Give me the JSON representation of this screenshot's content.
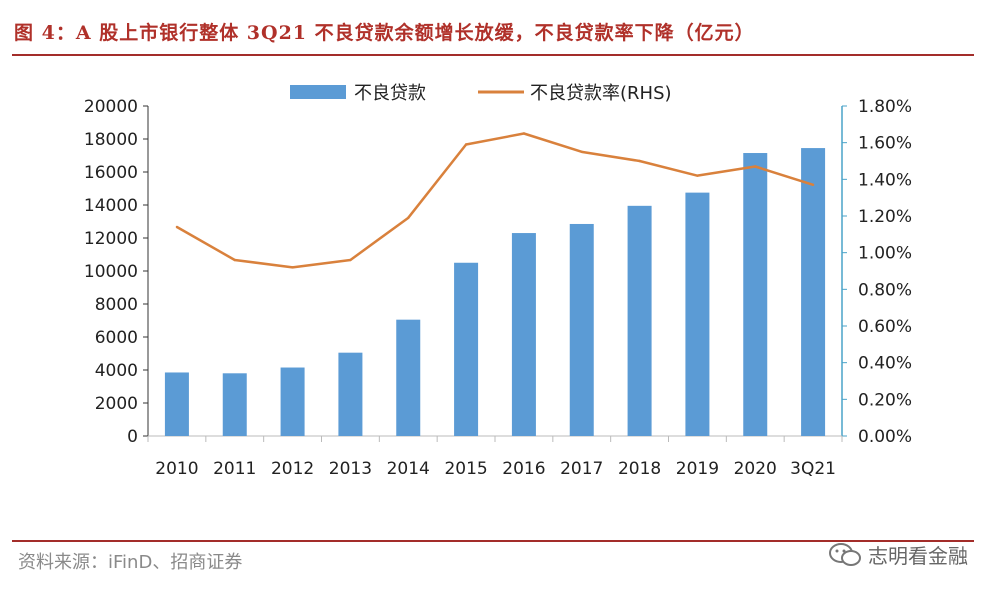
{
  "header": {
    "title": "图 4：A 股上市银行整体 3Q21 不良贷款余额增长放缓，不良贷款率下降（亿元）"
  },
  "footer": {
    "source": "资料来源：iFinD、招商证券",
    "watermark": "志明看金融"
  },
  "colors": {
    "bar": "#5b9bd5",
    "line": "#d9813c",
    "axis_left": "#333333",
    "axis_right": "#4aa3c8",
    "brand_red": "#a32d2a"
  },
  "chart_data": {
    "type": "bar",
    "title": "A 股上市银行整体 3Q21 不良贷款余额增长放缓，不良贷款率下降（亿元）",
    "categories": [
      "2010",
      "2011",
      "2012",
      "2013",
      "2014",
      "2015",
      "2016",
      "2017",
      "2018",
      "2019",
      "2020",
      "3Q21"
    ],
    "series": [
      {
        "name": "不良贷款",
        "type": "bar",
        "axis": "left",
        "values": [
          3850,
          3800,
          4150,
          5050,
          7050,
          10500,
          12300,
          12850,
          13950,
          14750,
          17150,
          17450
        ]
      },
      {
        "name": "不良贷款率(RHS)",
        "type": "line",
        "axis": "right",
        "values": [
          1.14,
          0.96,
          0.92,
          0.96,
          1.19,
          1.59,
          1.65,
          1.55,
          1.5,
          1.42,
          1.47,
          1.37
        ]
      }
    ],
    "ylim": [
      0,
      20000
    ],
    "y2lim": [
      0,
      1.8
    ],
    "yticks": [
      "0",
      "2000",
      "4000",
      "6000",
      "8000",
      "10000",
      "12000",
      "14000",
      "16000",
      "18000",
      "20000"
    ],
    "y2ticks": [
      "0.00%",
      "0.20%",
      "0.40%",
      "0.60%",
      "0.80%",
      "1.00%",
      "1.20%",
      "1.40%",
      "1.60%",
      "1.80%"
    ],
    "legend": [
      "不良贷款",
      "不良贷款率(RHS)"
    ],
    "legend_position": "top-center",
    "grid": false
  }
}
